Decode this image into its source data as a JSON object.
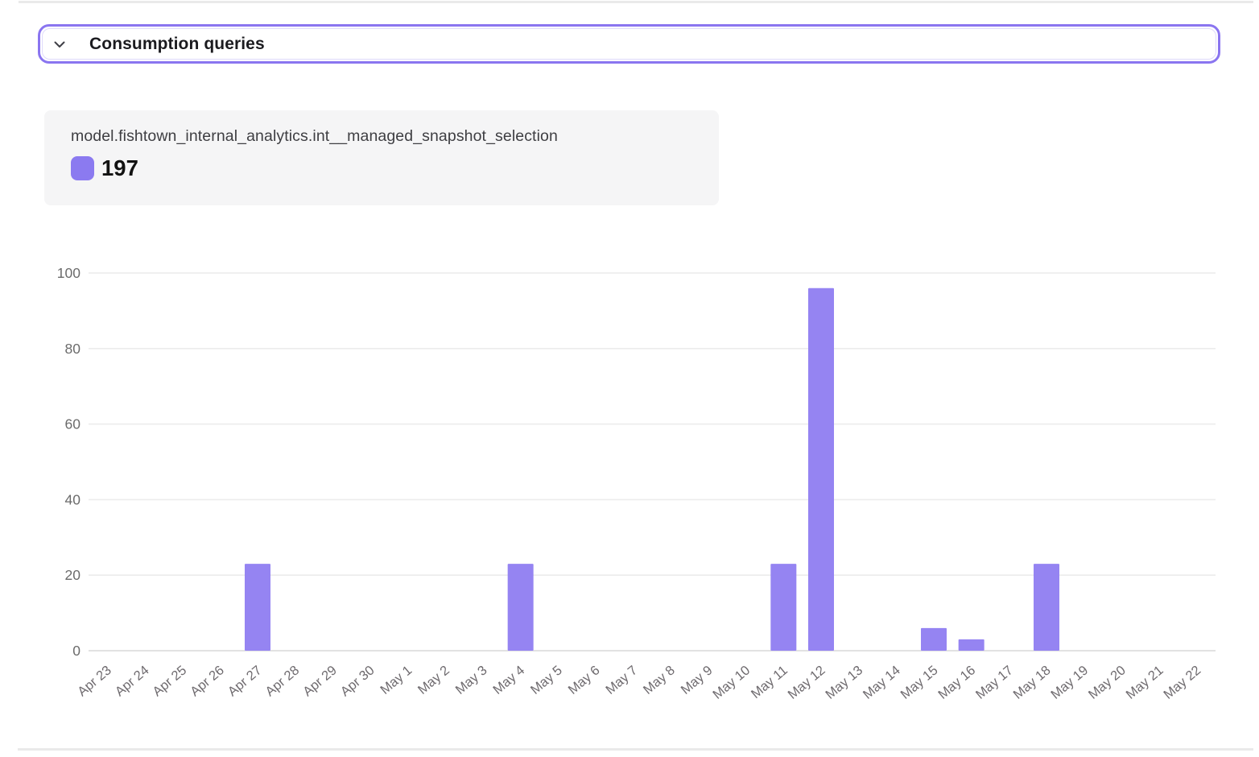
{
  "header": {
    "title": "Consumption queries",
    "border_color": "#8a75f0",
    "chevron_icon": "chevron-down"
  },
  "legend_card": {
    "series_label": "model.fishtown_internal_analytics.int__managed_snapshot_selection",
    "swatch_color": "#8b7af0",
    "total_value": "197"
  },
  "chart_data": {
    "type": "bar",
    "title": "",
    "xlabel": "",
    "ylabel": "",
    "categories": [
      "Apr 23",
      "Apr 24",
      "Apr 25",
      "Apr 26",
      "Apr 27",
      "Apr 28",
      "Apr 29",
      "Apr 30",
      "May 1",
      "May 2",
      "May 3",
      "May 4",
      "May 5",
      "May 6",
      "May 7",
      "May 8",
      "May 9",
      "May 10",
      "May 11",
      "May 12",
      "May 13",
      "May 14",
      "May 15",
      "May 16",
      "May 17",
      "May 18",
      "May 19",
      "May 20",
      "May 21",
      "May 22"
    ],
    "series": [
      {
        "name": "model.fishtown_internal_analytics.int__managed_snapshot_selection",
        "values": [
          0,
          0,
          0,
          0,
          23,
          0,
          0,
          0,
          0,
          0,
          0,
          23,
          0,
          0,
          0,
          0,
          0,
          0,
          23,
          96,
          0,
          0,
          6,
          3,
          0,
          23,
          0,
          0,
          0,
          0
        ],
        "color": "#9584f2",
        "total": 197
      }
    ],
    "yticks": [
      0,
      20,
      40,
      60,
      80,
      100
    ],
    "ylim": [
      0,
      100
    ],
    "grid": true,
    "legend_position": "top-left",
    "gridline_color": "#ececec",
    "zeroline_color": "#e2e2e2",
    "axis_label_color": "#6e6a6e"
  }
}
